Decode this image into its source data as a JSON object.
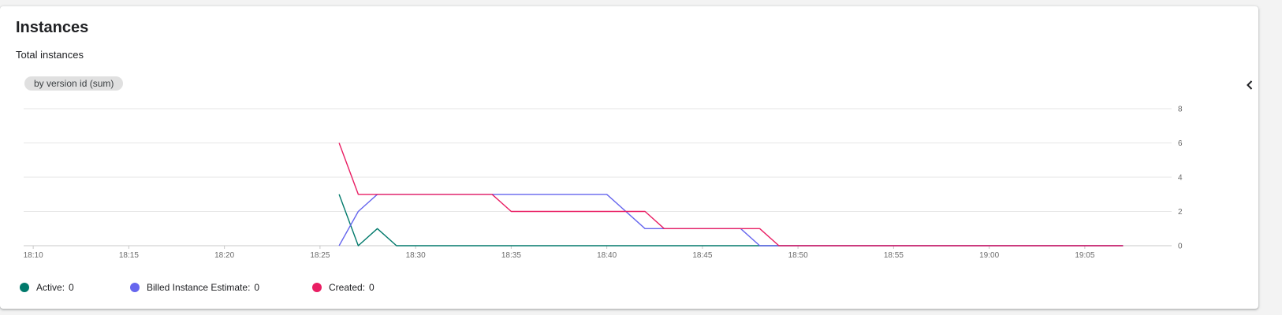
{
  "card": {
    "title": "Instances",
    "subtitle": "Total instances",
    "chip_label": "by version id (sum)",
    "collapse_icon": "chevron-left-icon"
  },
  "chart_data": {
    "type": "line",
    "title": "Instances",
    "subtitle": "Total instances",
    "xlabel": "",
    "ylabel": "",
    "x_ticks": [
      "18:10",
      "18:15",
      "18:20",
      "18:25",
      "18:30",
      "18:35",
      "18:40",
      "18:45",
      "18:50",
      "18:55",
      "19:00",
      "19:05"
    ],
    "y_ticks": [
      "0",
      "2",
      "4",
      "6",
      "8"
    ],
    "xlim": [
      "18:10",
      "19:09"
    ],
    "ylim": [
      0,
      8
    ],
    "grid": true,
    "legend_position": "bottom-left",
    "series": [
      {
        "name": "Active",
        "color": "#00796b",
        "legend_value": "0",
        "points": [
          [
            "18:26",
            3
          ],
          [
            "18:27",
            0
          ],
          [
            "18:28",
            1
          ],
          [
            "18:29",
            0
          ],
          [
            "19:07",
            0
          ]
        ]
      },
      {
        "name": "Billed Instance Estimate",
        "color": "#6666ee",
        "legend_value": "0",
        "points": [
          [
            "18:26",
            0
          ],
          [
            "18:27",
            2
          ],
          [
            "18:28",
            3
          ],
          [
            "18:34",
            3
          ],
          [
            "18:40",
            3
          ],
          [
            "18:42",
            1
          ],
          [
            "18:47",
            1
          ],
          [
            "18:48",
            0
          ],
          [
            "19:07",
            0
          ]
        ]
      },
      {
        "name": "Created",
        "color": "#e91e63",
        "legend_value": "0",
        "points": [
          [
            "18:26",
            6
          ],
          [
            "18:27",
            3
          ],
          [
            "18:34",
            3
          ],
          [
            "18:35",
            2
          ],
          [
            "18:42",
            2
          ],
          [
            "18:43",
            1
          ],
          [
            "18:48",
            1
          ],
          [
            "18:49",
            0
          ],
          [
            "19:07",
            0
          ]
        ]
      }
    ]
  }
}
